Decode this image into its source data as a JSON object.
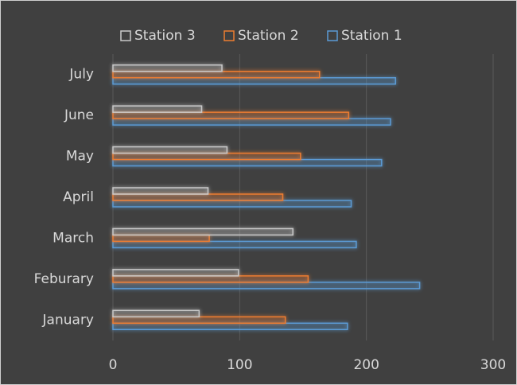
{
  "chart_data": {
    "type": "hbar",
    "categories": [
      "January",
      "Feburary",
      "March",
      "April",
      "May",
      "June",
      "July"
    ],
    "series": [
      {
        "name": "Station 1",
        "color": "#5b9bd5",
        "values": [
          185,
          242,
          192,
          188,
          212,
          219,
          223
        ]
      },
      {
        "name": "Station 2",
        "color": "#ed7d31",
        "values": [
          136,
          154,
          76,
          134,
          148,
          186,
          163
        ]
      },
      {
        "name": "Station 3",
        "color": "#c9c9c9",
        "values": [
          68,
          99,
          142,
          75,
          90,
          70,
          86
        ]
      }
    ],
    "xlim": [
      0,
      300
    ],
    "xticks": [
      0,
      100,
      200,
      300
    ],
    "grid": true,
    "legend": "top"
  }
}
